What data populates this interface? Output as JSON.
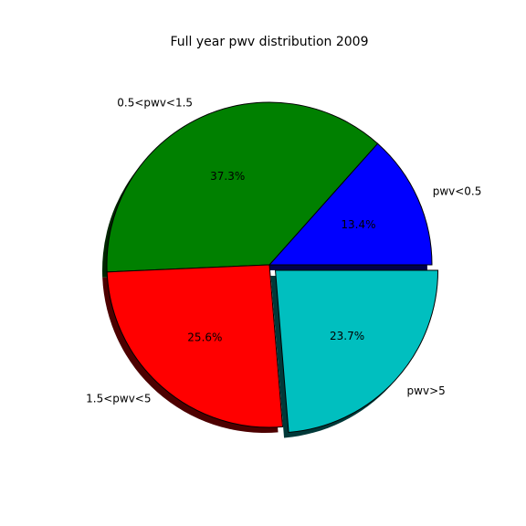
{
  "chart_data": {
    "type": "pie",
    "title": "Full year pwv distribution 2009",
    "categories": [
      "pwv<0.5",
      "0.5<pwv<1.5",
      "1.5<pwv<5",
      "pwv>5"
    ],
    "values": [
      13.4,
      37.3,
      25.6,
      23.7
    ],
    "value_labels": [
      "13.4%",
      "37.3%",
      "25.6%",
      "23.7%"
    ],
    "colors": [
      "#0000ff",
      "#008000",
      "#ff0000",
      "#00bfbf"
    ],
    "explode": [
      0,
      0,
      0,
      0.05
    ],
    "shadow": true
  }
}
